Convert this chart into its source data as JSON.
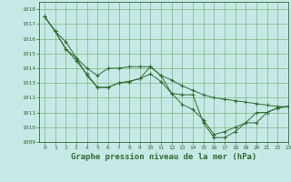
{
  "background_color": "#c8e8e8",
  "grid_color": "#7ab87a",
  "line_color": "#2d6e2d",
  "xlabel": "Graphe pression niveau de la mer (hPa)",
  "xlabel_fontsize": 6.5,
  "ylim": [
    1009,
    1018.5
  ],
  "xlim": [
    -0.5,
    23
  ],
  "yticks": [
    1009,
    1010,
    1011,
    1012,
    1013,
    1014,
    1015,
    1016,
    1017,
    1018
  ],
  "xticks": [
    0,
    1,
    2,
    3,
    4,
    5,
    6,
    7,
    8,
    9,
    10,
    11,
    12,
    13,
    14,
    15,
    16,
    17,
    18,
    19,
    20,
    21,
    22,
    23
  ],
  "series": [
    [
      1017.5,
      1016.5,
      1015.8,
      1014.7,
      1013.5,
      1012.7,
      1012.7,
      1013.0,
      1013.1,
      1013.3,
      1013.6,
      1013.1,
      1012.3,
      1012.2,
      1012.2,
      1010.3,
      1009.3,
      1009.3,
      1009.7,
      1010.3,
      1010.3,
      1011.0,
      1011.3,
      1011.4
    ],
    [
      1017.5,
      1016.5,
      1015.3,
      1014.7,
      1014.0,
      1013.5,
      1014.0,
      1014.0,
      1014.1,
      1014.1,
      1014.1,
      1013.5,
      1013.2,
      1012.8,
      1012.5,
      1012.2,
      1012.0,
      1011.9,
      1011.8,
      1011.7,
      1011.6,
      1011.5,
      1011.4,
      1011.4
    ],
    [
      1017.5,
      1016.5,
      1015.3,
      1014.5,
      1013.6,
      1012.7,
      1012.7,
      1013.0,
      1013.1,
      1013.3,
      1014.1,
      1013.5,
      1012.3,
      1011.55,
      1011.2,
      1010.5,
      1009.5,
      1009.7,
      1010.0,
      1010.3,
      1011.0,
      1011.0,
      1011.3,
      1011.4
    ]
  ]
}
